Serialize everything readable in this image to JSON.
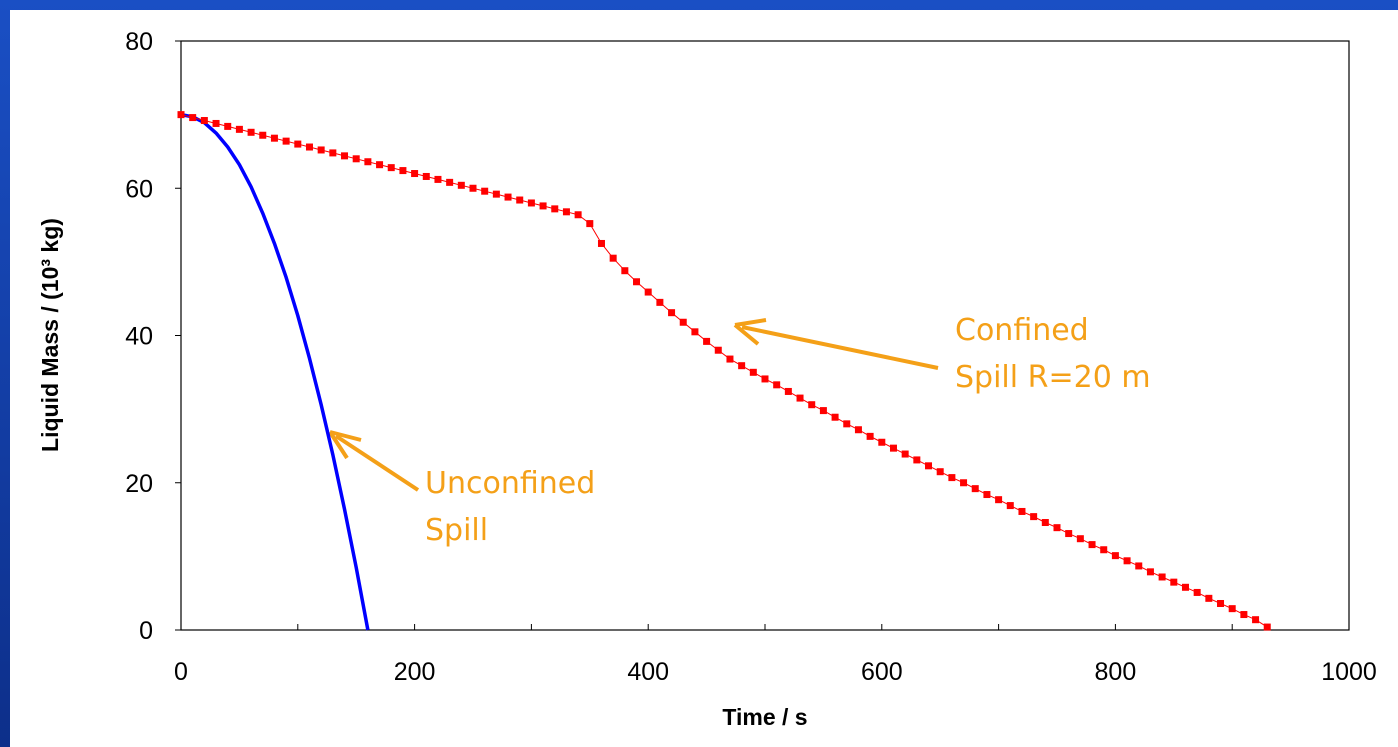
{
  "chart_data": {
    "type": "line",
    "xlabel": "Time / s",
    "ylabel": "Liquid Mass / (10³ kg)",
    "xlim": [
      0,
      1000
    ],
    "xticks": [
      0,
      200,
      400,
      600,
      800,
      1000
    ],
    "xminorticks": [
      100,
      300,
      500,
      700,
      900
    ],
    "ylim": [
      0,
      80
    ],
    "yticks": [
      0,
      20,
      40,
      60,
      80
    ],
    "grid": false,
    "series": [
      {
        "color": "#0000ff",
        "marker": false,
        "x": [
          0,
          10,
          20,
          30,
          40,
          50,
          60,
          70,
          80,
          90,
          100,
          110,
          120,
          130,
          140,
          150,
          160
        ],
        "values": [
          70,
          69.7,
          68.9,
          67.5,
          65.6,
          63.2,
          60.2,
          56.6,
          52.5,
          47.9,
          42.7,
          36.9,
          30.6,
          23.8,
          16.4,
          8.5,
          0
        ]
      },
      {
        "color": "#ff0000",
        "marker": true,
        "x": [
          0,
          10,
          20,
          30,
          40,
          50,
          60,
          70,
          80,
          90,
          100,
          110,
          120,
          130,
          140,
          150,
          160,
          170,
          180,
          190,
          200,
          210,
          220,
          230,
          240,
          250,
          260,
          270,
          280,
          290,
          300,
          310,
          320,
          330,
          340,
          350,
          360,
          370,
          380,
          390,
          400,
          410,
          420,
          430,
          440,
          450,
          460,
          470,
          480,
          490,
          500,
          510,
          520,
          530,
          540,
          550,
          560,
          570,
          580,
          590,
          600,
          610,
          620,
          630,
          640,
          650,
          660,
          670,
          680,
          690,
          700,
          710,
          720,
          730,
          740,
          750,
          760,
          770,
          780,
          790,
          800,
          810,
          820,
          830,
          840,
          850,
          860,
          870,
          880,
          890,
          900,
          910,
          920,
          930
        ],
        "values": [
          70,
          69.6,
          69.2,
          68.8,
          68.4,
          68,
          67.6,
          67.2,
          66.8,
          66.4,
          66,
          65.6,
          65.2,
          64.8,
          64.4,
          64,
          63.6,
          63.2,
          62.8,
          62.4,
          62,
          61.6,
          61.2,
          60.8,
          60.4,
          60,
          59.6,
          59.2,
          58.8,
          58.4,
          58,
          57.6,
          57.2,
          56.8,
          56.4,
          55.2,
          52.5,
          50.5,
          48.8,
          47.3,
          45.9,
          44.5,
          43.1,
          41.8,
          40.5,
          39.2,
          38,
          36.8,
          35.9,
          35,
          34.1,
          33.3,
          32.4,
          31.5,
          30.6,
          29.8,
          28.9,
          28,
          27.2,
          26.3,
          25.5,
          24.7,
          23.9,
          23.1,
          22.3,
          21.5,
          20.7,
          20,
          19.2,
          18.4,
          17.7,
          16.9,
          16.1,
          15.4,
          14.6,
          13.9,
          13.1,
          12.4,
          11.6,
          10.9,
          10.1,
          9.4,
          8.7,
          7.9,
          7.2,
          6.5,
          5.8,
          5.1,
          4.3,
          3.6,
          2.9,
          2.1,
          1.4,
          0.4
        ]
      }
    ],
    "annotations": [
      {
        "lines": [
          "Confined",
          "Spill R=20 m"
        ],
        "color": "#f4a018"
      },
      {
        "lines": [
          "Unconfined",
          "Spill"
        ],
        "color": "#f4a018"
      }
    ]
  }
}
